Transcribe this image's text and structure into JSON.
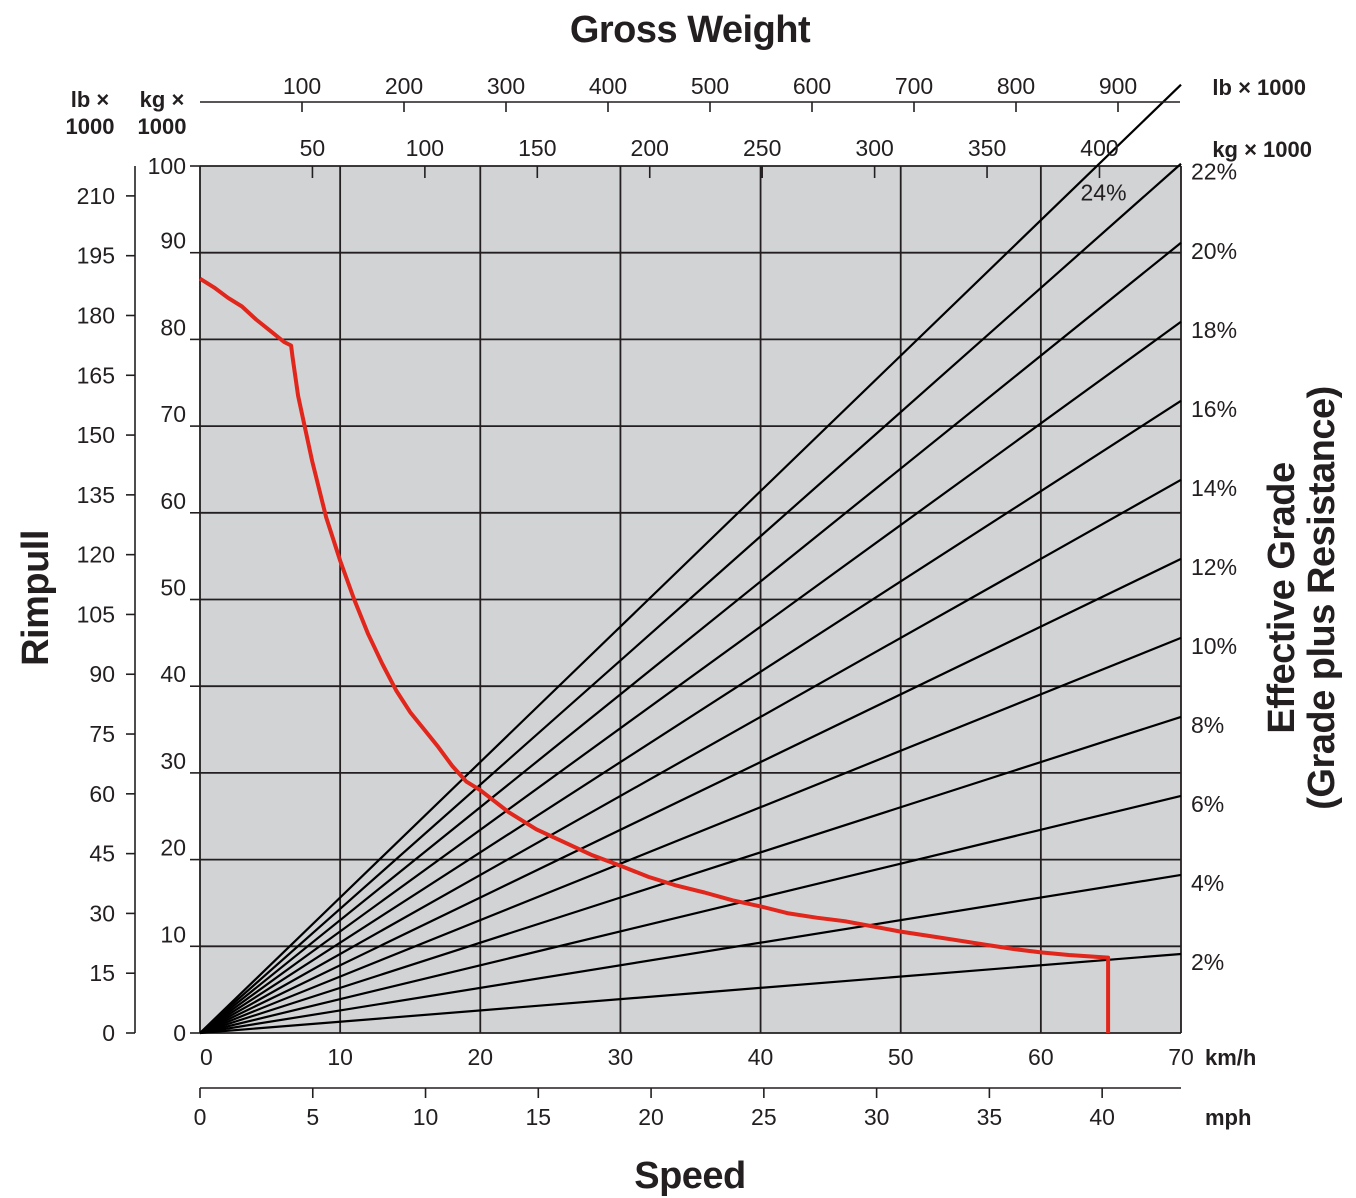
{
  "chart_data": {
    "type": "line",
    "title": "Gross Weight",
    "xlabel": "Speed",
    "ylabel": "Rimpull",
    "right_label_line1": "Effective Grade",
    "right_label_line2": "(Grade plus Resistance)",
    "units": {
      "gw_lb": "lb × 1000",
      "gw_kg": "kg × 1000",
      "rim_lb_1": "lb ×",
      "rim_lb_2": "1000",
      "rim_kg_1": "kg ×",
      "rim_kg_2": "1000",
      "speed_kmh": "km/h",
      "speed_mph": "mph"
    },
    "xlim_kmh": [
      0,
      70
    ],
    "ylim_kg_x1000": [
      0,
      100
    ],
    "grid": true,
    "axes": {
      "kmh_ticks": [
        "0",
        "10",
        "20",
        "30",
        "40",
        "50",
        "60",
        "70"
      ],
      "mph_ticks": [
        "0",
        "5",
        "10",
        "15",
        "20",
        "25",
        "30",
        "35",
        "40"
      ],
      "rimpull_kg_ticks": [
        "0",
        "10",
        "20",
        "30",
        "40",
        "50",
        "60",
        "70",
        "80",
        "90",
        "100"
      ],
      "rimpull_lb_ticks": [
        "0",
        "15",
        "30",
        "45",
        "60",
        "75",
        "90",
        "105",
        "120",
        "135",
        "150",
        "165",
        "180",
        "195",
        "210"
      ],
      "gross_weight_lb_ticks": [
        "100",
        "200",
        "300",
        "400",
        "500",
        "600",
        "700",
        "800",
        "900"
      ],
      "gross_weight_kg_ticks": [
        "50",
        "100",
        "150",
        "200",
        "250",
        "300",
        "350",
        "400"
      ]
    },
    "grade_lines": [
      "2%",
      "4%",
      "6%",
      "8%",
      "10%",
      "12%",
      "14%",
      "16%",
      "18%",
      "20%",
      "22%",
      "24%"
    ],
    "series": [
      {
        "x_kmh": [
          0,
          1,
          2,
          3,
          4,
          5,
          6,
          6.5,
          6.6,
          7,
          8,
          9,
          10,
          11,
          12,
          13,
          14,
          15,
          16,
          17,
          18,
          19,
          20,
          22,
          24,
          26,
          28,
          30,
          32,
          34,
          36,
          38,
          40,
          42,
          44,
          46,
          48,
          50,
          52,
          54,
          56,
          58,
          60,
          62,
          64.8,
          64.8
        ],
        "y_kg_x1000": [
          87,
          86,
          84.8,
          83.8,
          82.3,
          81,
          79.7,
          79.3,
          78,
          73.5,
          66,
          59.5,
          54.5,
          50,
          46,
          42.6,
          39.5,
          37,
          35,
          33,
          30.8,
          29,
          28,
          25.5,
          23.5,
          22,
          20.5,
          19.3,
          18,
          17,
          16.2,
          15.3,
          14.6,
          13.8,
          13.3,
          12.9,
          12.3,
          11.7,
          11.2,
          10.7,
          10.2,
          9.7,
          9.3,
          9,
          8.7,
          0
        ]
      }
    ]
  }
}
